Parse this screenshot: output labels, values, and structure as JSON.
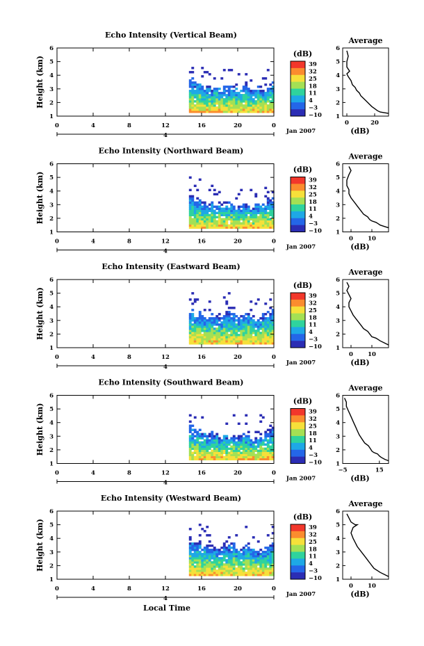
{
  "figure": {
    "xlabel": "Local Time",
    "date_label": "Jan 2007",
    "day_label": "4",
    "colorbar_unit": "(dB)",
    "colorbar_ticks": [
      "39",
      "32",
      "25",
      "18",
      "11",
      "4",
      "−3",
      "−10"
    ],
    "colorbar_colors": [
      "#f2372b",
      "#fb8c2e",
      "#f6e03a",
      "#a4e054",
      "#2fd39d",
      "#1ea8e6",
      "#2466e8",
      "#2b2db4"
    ],
    "avg_title": "Average",
    "avg_xlabel": "(dB)",
    "height_ylabel": "Height (km)"
  },
  "chart_data": [
    {
      "type": "heatmap",
      "title": "Echo Intensity (Vertical Beam)",
      "ylabel": "Height (km)",
      "x_ticks": [
        "0",
        "4",
        "8",
        "12",
        "16",
        "20",
        "0"
      ],
      "y_ticks": [
        "1",
        "2",
        "3",
        "4",
        "5",
        "6"
      ],
      "xlim": [
        0,
        24
      ],
      "ylim": [
        1,
        6
      ],
      "z_unit": "dB",
      "zlim": [
        -10,
        39
      ],
      "data_start_hour": 14.6,
      "top_profile": [
        3.8,
        3.4,
        3.6,
        3.2,
        3.4,
        3.0,
        3.3,
        3.0,
        3.2,
        3.1,
        3.2,
        3.0,
        2.9,
        3.1,
        3.0,
        2.8,
        3.1,
        3.0,
        2.8,
        3.2,
        3.5
      ],
      "average_profile": {
        "xlabel": "(dB)",
        "x_ticks": [
          "0",
          "20"
        ],
        "xlim": [
          -3,
          30
        ],
        "y_ticks": [
          "1",
          "2",
          "3",
          "4",
          "5",
          "6"
        ],
        "ylim": [
          1,
          6
        ],
        "x": [
          0,
          1,
          0,
          0,
          2,
          0,
          1,
          3,
          4,
          6,
          7,
          9,
          10,
          12,
          14,
          16,
          18,
          20,
          22,
          24,
          27,
          30
        ],
        "y": [
          5.8,
          5.4,
          5.0,
          4.6,
          4.3,
          4.1,
          3.9,
          3.6,
          3.3,
          3.1,
          2.9,
          2.7,
          2.5,
          2.3,
          2.1,
          1.9,
          1.7,
          1.55,
          1.4,
          1.3,
          1.25,
          1.2
        ]
      }
    },
    {
      "type": "heatmap",
      "title": "Echo Intensity (Northward Beam)",
      "ylabel": "Height (km)",
      "x_ticks": [
        "0",
        "4",
        "8",
        "12",
        "16",
        "20",
        "0"
      ],
      "y_ticks": [
        "1",
        "2",
        "3",
        "4",
        "5",
        "6"
      ],
      "xlim": [
        0,
        24
      ],
      "ylim": [
        1,
        6
      ],
      "z_unit": "dB",
      "zlim": [
        -10,
        39
      ],
      "data_start_hour": 14.6,
      "top_profile": [
        3.6,
        3.2,
        3.4,
        3.1,
        3.0,
        3.2,
        2.9,
        3.0,
        2.8,
        3.1,
        3.0,
        2.9,
        2.8,
        3.0,
        2.9,
        2.7,
        3.0,
        3.1,
        3.0,
        3.3,
        3.5
      ],
      "average_profile": {
        "xlabel": "(dB)",
        "x_ticks": [
          "0",
          "10"
        ],
        "xlim": [
          -4,
          18
        ],
        "y_ticks": [
          "1",
          "2",
          "3",
          "4",
          "5",
          "6"
        ],
        "ylim": [
          1,
          6
        ],
        "x": [
          -1,
          0,
          -1,
          -2,
          -2,
          -1,
          -1,
          0,
          1,
          2,
          3,
          4,
          5,
          6,
          8,
          9,
          10,
          12,
          13,
          14,
          16,
          18
        ],
        "y": [
          5.8,
          5.5,
          5.2,
          4.8,
          4.4,
          4.1,
          3.8,
          3.5,
          3.3,
          3.1,
          2.9,
          2.7,
          2.5,
          2.3,
          2.1,
          1.9,
          1.8,
          1.7,
          1.6,
          1.5,
          1.4,
          1.3
        ]
      }
    },
    {
      "type": "heatmap",
      "title": "Echo Intensity (Eastward Beam)",
      "ylabel": "Height (km)",
      "x_ticks": [
        "0",
        "4",
        "8",
        "12",
        "16",
        "20",
        "0"
      ],
      "y_ticks": [
        "1",
        "2",
        "3",
        "4",
        "5",
        "6"
      ],
      "xlim": [
        0,
        24
      ],
      "ylim": [
        1,
        6
      ],
      "z_unit": "dB",
      "zlim": [
        -10,
        39
      ],
      "data_start_hour": 14.6,
      "top_profile": [
        3.8,
        3.5,
        3.6,
        3.4,
        3.2,
        3.5,
        3.3,
        3.1,
        3.4,
        3.6,
        3.5,
        3.3,
        3.2,
        3.4,
        3.5,
        3.3,
        3.1,
        3.2,
        3.4,
        3.6,
        3.8
      ],
      "average_profile": {
        "xlabel": "(dB)",
        "x_ticks": [
          "0",
          "10"
        ],
        "xlim": [
          -4,
          18
        ],
        "y_ticks": [
          "1",
          "2",
          "3",
          "4",
          "5",
          "6"
        ],
        "ylim": [
          1,
          6
        ],
        "x": [
          -2,
          -1,
          -2,
          -1,
          0,
          -1,
          -1,
          0,
          1,
          2,
          3,
          4,
          5,
          6,
          8,
          9,
          10,
          12,
          13,
          14,
          16,
          18
        ],
        "y": [
          5.8,
          5.5,
          5.2,
          4.9,
          4.6,
          4.3,
          4.0,
          3.7,
          3.4,
          3.2,
          3.0,
          2.8,
          2.6,
          2.4,
          2.2,
          2.0,
          1.8,
          1.7,
          1.6,
          1.5,
          1.35,
          1.2
        ]
      }
    },
    {
      "type": "heatmap",
      "title": "Echo Intensity (Southward Beam)",
      "ylabel": "Height (km)",
      "x_ticks": [
        "0",
        "4",
        "8",
        "12",
        "16",
        "20",
        "0"
      ],
      "y_ticks": [
        "1",
        "2",
        "3",
        "4",
        "5",
        "6"
      ],
      "xlim": [
        0,
        24
      ],
      "ylim": [
        1,
        6
      ],
      "z_unit": "dB",
      "zlim": [
        -10,
        39
      ],
      "data_start_hour": 14.6,
      "top_profile": [
        3.7,
        3.4,
        3.5,
        3.2,
        3.0,
        3.3,
        3.1,
        2.9,
        3.2,
        3.0,
        3.1,
        2.9,
        3.0,
        3.2,
        3.0,
        2.8,
        2.9,
        3.1,
        3.2,
        3.4,
        3.6
      ],
      "average_profile": {
        "xlabel": "(dB)",
        "x_ticks": [
          "−5",
          "15"
        ],
        "xlim": [
          -5,
          20
        ],
        "y_ticks": [
          "1",
          "2",
          "3",
          "4",
          "5",
          "6"
        ],
        "ylim": [
          1,
          6
        ],
        "x": [
          -4,
          -3,
          -3,
          -2,
          -1,
          0,
          1,
          2,
          3,
          4,
          5,
          6,
          7,
          9,
          10,
          11,
          12,
          14,
          15,
          16,
          18,
          20
        ],
        "y": [
          5.8,
          5.5,
          5.2,
          4.9,
          4.6,
          4.3,
          4.0,
          3.7,
          3.4,
          3.1,
          2.9,
          2.7,
          2.5,
          2.3,
          2.1,
          1.9,
          1.8,
          1.7,
          1.55,
          1.45,
          1.3,
          1.2
        ]
      }
    },
    {
      "type": "heatmap",
      "title": "Echo Intensity (Westward Beam)",
      "ylabel": "Height (km)",
      "x_ticks": [
        "0",
        "4",
        "8",
        "12",
        "16",
        "20",
        "0"
      ],
      "y_ticks": [
        "1",
        "2",
        "3",
        "4",
        "5",
        "6"
      ],
      "xlim": [
        0,
        24
      ],
      "ylim": [
        1,
        6
      ],
      "z_unit": "dB",
      "zlim": [
        -10,
        39
      ],
      "data_start_hour": 14.6,
      "top_profile": [
        3.9,
        3.6,
        3.7,
        3.5,
        3.4,
        3.6,
        3.3,
        3.2,
        3.5,
        3.4,
        3.6,
        3.3,
        3.2,
        3.4,
        3.5,
        3.2,
        3.0,
        3.1,
        3.3,
        3.4,
        3.6
      ],
      "average_profile": {
        "xlabel": "(dB)",
        "x_ticks": [
          "0",
          "10"
        ],
        "xlim": [
          -4,
          18
        ],
        "y_ticks": [
          "1",
          "2",
          "3",
          "4",
          "5",
          "6"
        ],
        "ylim": [
          1,
          6
        ],
        "x": [
          -2,
          -1,
          0,
          2,
          3,
          1,
          0,
          1,
          2,
          3,
          4,
          5,
          6,
          7,
          8,
          9,
          10,
          11,
          13,
          14,
          16,
          18
        ],
        "y": [
          5.8,
          5.5,
          5.2,
          5.0,
          5.0,
          4.8,
          4.4,
          4.0,
          3.7,
          3.4,
          3.2,
          3.0,
          2.8,
          2.6,
          2.4,
          2.2,
          2.0,
          1.8,
          1.6,
          1.5,
          1.35,
          1.2
        ]
      }
    }
  ]
}
